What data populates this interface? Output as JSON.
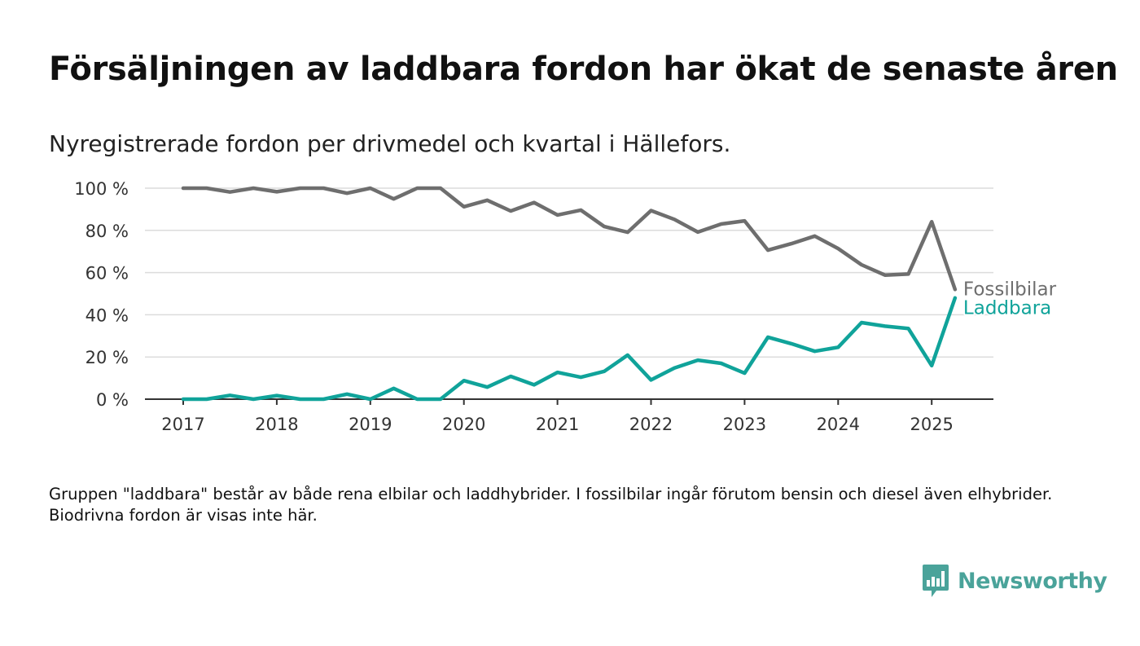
{
  "title": "Försäljningen av laddbara fordon har ökat de senaste åren",
  "subtitle": "Nyregistrerade fordon per drivmedel och kvartal i Hällefors.",
  "footnote": "Gruppen \"laddbara\" består av både rena elbilar och laddhybrider. I fossilbilar ingår förutom bensin och diesel även elhybrider. Biodrivna fordon är visas inte här.",
  "brand": {
    "name": "Newsworthy",
    "color": "#4aa39a"
  },
  "chart_data": {
    "type": "line",
    "title": "Försäljningen av laddbara fordon har ökat de senaste åren",
    "subtitle": "Nyregistrerade fordon per drivmedel och kvartal i Hällefors.",
    "xlabel": "",
    "ylabel": "",
    "ylim": [
      0,
      100
    ],
    "yticks": [
      0,
      20,
      40,
      60,
      80,
      100
    ],
    "ytick_labels": [
      "0 %",
      "20 %",
      "40 %",
      "60 %",
      "80 %",
      "100 %"
    ],
    "xticks": [
      2017,
      2018,
      2019,
      2020,
      2021,
      2022,
      2023,
      2024,
      2025
    ],
    "xtick_labels": [
      "2017",
      "2018",
      "2019",
      "2020",
      "2021",
      "2022",
      "2023",
      "2024",
      "2025"
    ],
    "x": [
      "2017-Q1",
      "2017-Q2",
      "2017-Q3",
      "2017-Q4",
      "2018-Q1",
      "2018-Q2",
      "2018-Q3",
      "2018-Q4",
      "2019-Q1",
      "2019-Q2",
      "2019-Q3",
      "2019-Q4",
      "2020-Q1",
      "2020-Q2",
      "2020-Q3",
      "2020-Q4",
      "2021-Q1",
      "2021-Q2",
      "2021-Q3",
      "2021-Q4",
      "2022-Q1",
      "2022-Q2",
      "2022-Q3",
      "2022-Q4",
      "2023-Q1",
      "2023-Q2",
      "2023-Q3",
      "2023-Q4",
      "2024-Q1",
      "2024-Q2",
      "2024-Q3",
      "2024-Q4",
      "2025-Q1",
      "2025-Q2"
    ],
    "grid": true,
    "series": [
      {
        "name": "Fossilbilar",
        "color": "#6e6e6e",
        "values": [
          100,
          100,
          98.2,
          100,
          98.3,
          100,
          100,
          97.6,
          100,
          94.9,
          100,
          100,
          91.2,
          94.3,
          89.2,
          93.2,
          87.3,
          89.6,
          81.8,
          79.1,
          89.4,
          85.2,
          79.2,
          83.0,
          84.5,
          70.6,
          73.7,
          77.3,
          71.4,
          63.7,
          58.8,
          59.3,
          84.1,
          52.0
        ]
      },
      {
        "name": "Laddbara",
        "color": "#10a39a",
        "values": [
          0,
          0,
          1.8,
          0,
          1.7,
          0,
          0,
          2.4,
          0,
          5.1,
          0,
          0,
          8.8,
          5.7,
          10.8,
          6.8,
          12.7,
          10.4,
          13.2,
          20.9,
          9.1,
          14.8,
          18.5,
          17.0,
          12.3,
          29.4,
          26.3,
          22.7,
          24.6,
          36.3,
          34.6,
          33.5,
          15.9,
          48.0
        ]
      }
    ]
  }
}
